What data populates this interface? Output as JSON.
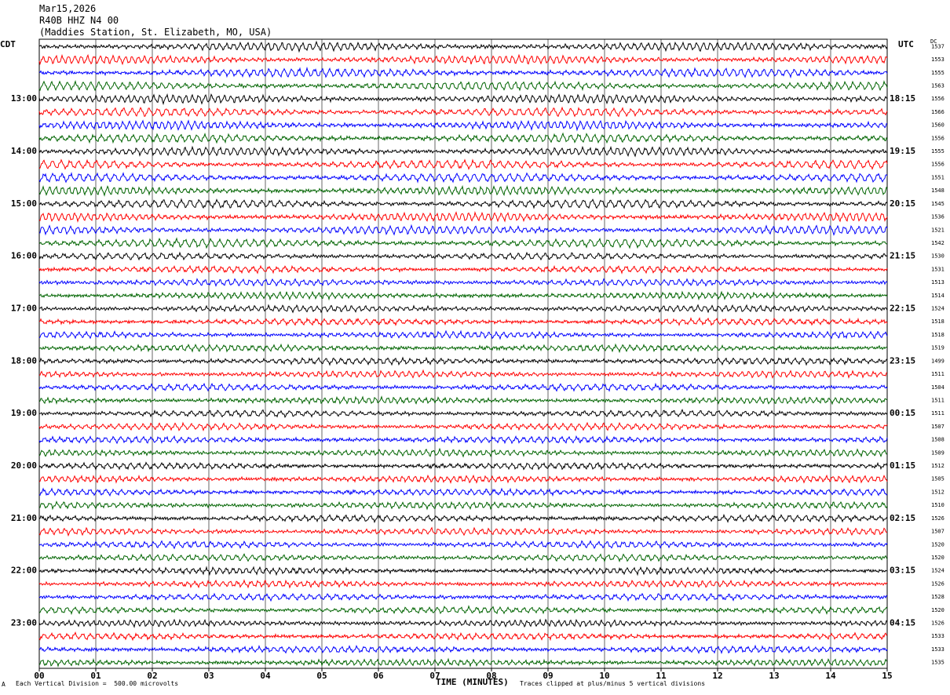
{
  "header": {
    "date": "Mar15,2026",
    "channel": "R40B HHZ N4 00",
    "station": "(Maddies Station, St. Elizabeth, MO, USA)"
  },
  "left_unit": "CDT",
  "right_unit": "UTC",
  "dc_label": "DC",
  "footer": {
    "scale_note": "Each Vertical Division =  500.00 microvolts",
    "xlabel": "TIME (MINUTES)",
    "clip_note": "Traces clipped at plus/minus 5 vertical divisions",
    "corner_mark": "A"
  },
  "chart_data": {
    "type": "line",
    "title": "R40B HHZ N4 00",
    "xlabel": "TIME (MINUTES)",
    "x_ticks": [
      "00",
      "01",
      "02",
      "03",
      "04",
      "05",
      "06",
      "07",
      "08",
      "09",
      "10",
      "11",
      "12",
      "13",
      "14",
      "15"
    ],
    "xlim": [
      0,
      15
    ],
    "left_hour_labels": [
      "13:00",
      "14:00",
      "15:00",
      "16:00",
      "17:00",
      "18:00",
      "19:00",
      "20:00",
      "21:00",
      "22:00",
      "23:00"
    ],
    "right_hour_labels": [
      "18:15",
      "19:15",
      "20:15",
      "21:15",
      "22:15",
      "23:15",
      "00:15",
      "01:15",
      "02:15",
      "03:15",
      "04:15"
    ],
    "trace_colors": [
      "#000000",
      "#ff0000",
      "#0000ff",
      "#006400"
    ],
    "dc_offsets": [
      1537,
      1553,
      1555,
      1563,
      1556,
      1566,
      1560,
      1556,
      1555,
      1556,
      1551,
      1548,
      1545,
      1536,
      1521,
      1542,
      1530,
      1531,
      1513,
      1514,
      1524,
      1518,
      1518,
      1519,
      1499,
      1511,
      1504,
      1511,
      1511,
      1507,
      1508,
      1509,
      1512,
      1505,
      1512,
      1510,
      1526,
      1507,
      1520,
      1520,
      1524,
      1526,
      1528,
      1520,
      1526,
      1533,
      1533,
      1535
    ],
    "rows_per_hour": 4,
    "minutes_per_row": 15
  }
}
